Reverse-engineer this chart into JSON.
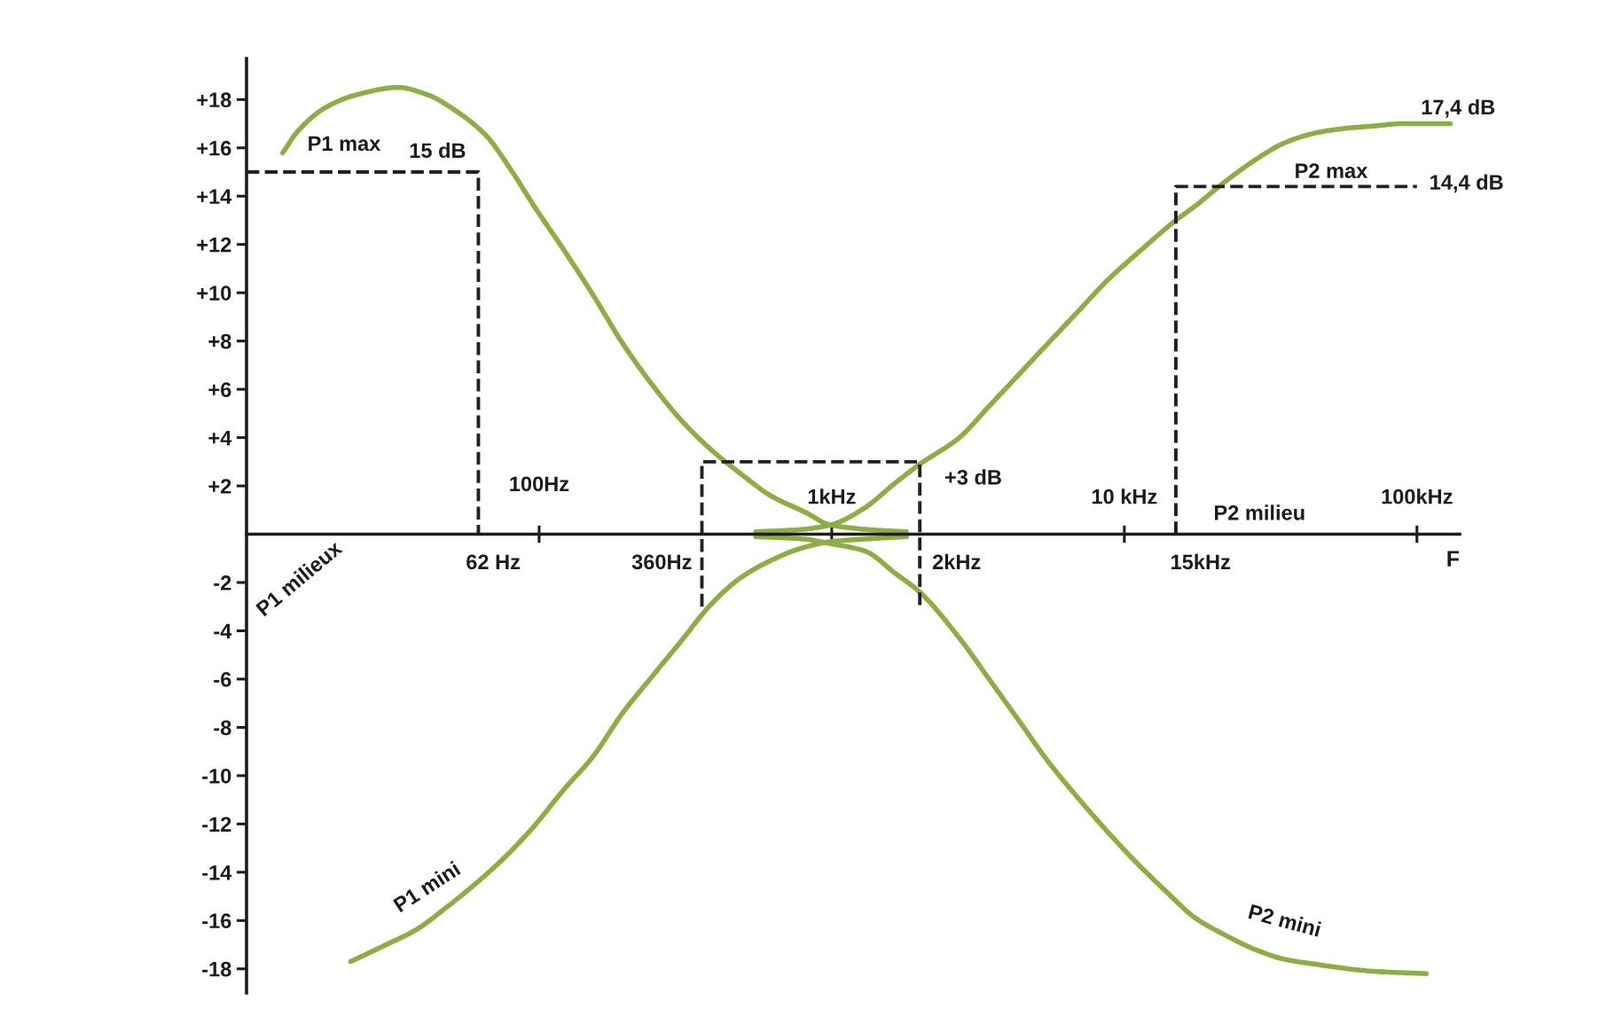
{
  "chart_data": {
    "type": "line",
    "log": "x",
    "line_style": "solid",
    "xlabel": "F",
    "xlim": [
      0.01,
      140
    ],
    "xticks": [
      {
        "value": 0.1,
        "label": null
      },
      {
        "value": 1,
        "label": "1kHz"
      },
      {
        "value": 10,
        "label": "10 kHz"
      },
      {
        "value": 100,
        "label": "100kHz"
      }
    ],
    "ylim": [
      -19,
      19.7
    ],
    "yticks": [
      {
        "value": 18,
        "label": "+18"
      },
      {
        "value": 16,
        "label": "+16"
      },
      {
        "value": 14,
        "label": "+14"
      },
      {
        "value": 12,
        "label": "+12"
      },
      {
        "value": 10,
        "label": "+10"
      },
      {
        "value": 8,
        "label": "+8"
      },
      {
        "value": 6,
        "label": "+6"
      },
      {
        "value": 4,
        "label": "+4"
      },
      {
        "value": 2,
        "label": "+2"
      },
      -2,
      -4,
      -6,
      -8,
      -10,
      -12,
      -14,
      -16,
      -18
    ],
    "series": [
      {
        "name": "P1 max",
        "color": "#8fae42",
        "x": [
          0.0133,
          0.015,
          0.0188,
          0.0238,
          0.033,
          0.0415,
          0.0524,
          0.066,
          0.08,
          0.096,
          0.121,
          0.153,
          0.193,
          0.243,
          0.307,
          0.387,
          0.489,
          0.617,
          0.815,
          0.98,
          1.3,
          1.8
        ],
        "values": [
          15.8,
          16.7,
          17.7,
          18.2,
          18.5,
          18.2,
          17.5,
          16.5,
          15.1,
          13.6,
          11.8,
          9.9,
          7.9,
          6.2,
          4.7,
          3.5,
          2.5,
          1.6,
          0.9,
          0.4,
          0.2,
          0.1
        ]
      },
      {
        "name": "P1 mini",
        "color": "#8fae42",
        "x": [
          0.0227,
          0.03,
          0.0378,
          0.0477,
          0.0603,
          0.076,
          0.096,
          0.121,
          0.153,
          0.193,
          0.243,
          0.307,
          0.387,
          0.489,
          0.617,
          0.778,
          1.0,
          1.3,
          1.8
        ],
        "values": [
          -17.7,
          -17.0,
          -16.4,
          -15.5,
          -14.5,
          -13.4,
          -12.1,
          -10.6,
          -9.2,
          -7.4,
          -5.9,
          -4.4,
          -2.9,
          -1.8,
          -1.1,
          -0.6,
          -0.3,
          -0.2,
          -0.1
        ]
      },
      {
        "name": "P2 max",
        "color": "#8fae42",
        "x": [
          0.55,
          0.8,
          1,
          1.3,
          1.64,
          2,
          2.73,
          3.45,
          4.35,
          5.48,
          6.92,
          8.73,
          11,
          15,
          17.5,
          22.1,
          28,
          35.2,
          44.4,
          56,
          70.7,
          89,
          130
        ],
        "values": [
          0.1,
          0.2,
          0.4,
          1.1,
          2.1,
          2.9,
          4.0,
          5.3,
          6.6,
          7.9,
          9.2,
          10.5,
          11.6,
          13.0,
          13.6,
          14.6,
          15.5,
          16.2,
          16.6,
          16.8,
          16.9,
          17.0,
          17.0
        ]
      },
      {
        "name": "P2 mini",
        "color": "#8fae42",
        "x": [
          0.55,
          0.8,
          1,
          1.3,
          1.64,
          2,
          2.73,
          3.45,
          4.35,
          5.48,
          6.92,
          8.73,
          11,
          13.9,
          17.5,
          22.1,
          28,
          35.2,
          44.4,
          70.7,
          107.6
        ],
        "values": [
          -0.1,
          -0.2,
          -0.4,
          -0.7,
          -1.6,
          -2.4,
          -4.3,
          -6.0,
          -7.7,
          -9.4,
          -10.9,
          -12.3,
          -13.6,
          -14.8,
          -15.9,
          -16.6,
          -17.2,
          -17.6,
          -17.8,
          -18.1,
          -18.2
        ]
      },
      {
        "color": "#222222",
        "line_style": "dashed",
        "x": [
          0.01,
          0.062,
          0.062
        ],
        "values": [
          15,
          15,
          0
        ]
      },
      {
        "color": "#222222",
        "line_style": "dashed",
        "x": [
          0.36,
          0.36,
          2,
          2
        ],
        "values": [
          -3,
          3,
          3,
          -3
        ]
      },
      {
        "color": "#222222",
        "line_style": "dashed",
        "x": [
          15,
          15,
          100
        ],
        "values": [
          0,
          14.4,
          14.4
        ]
      }
    ],
    "annotations": [
      "100Hz",
      {
        "text": "15 dB",
        "x": 0.062,
        "y": 15
      },
      {
        "text": "+3 dB",
        "x": 2,
        "y": 3
      },
      {
        "text": "14,4 dB",
        "x": 100,
        "y": 14.4
      },
      "17,4 dB",
      {
        "text": "62 Hz",
        "x": 0.062,
        "y": 0
      },
      {
        "text": "360Hz",
        "x": 0.36,
        "y": 0
      },
      {
        "text": "2kHz",
        "x": 2,
        "y": 0
      },
      {
        "text": "15kHz",
        "x": 15,
        "y": 0
      },
      "P1 milieux",
      "P2 milieu"
    ]
  }
}
